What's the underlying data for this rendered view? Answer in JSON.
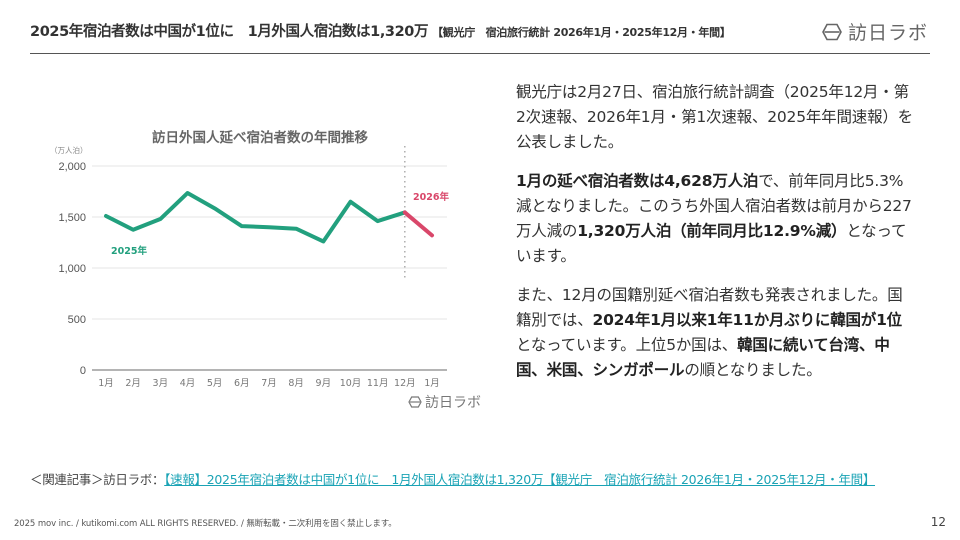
{
  "header": {
    "title": "2025年宿泊者数は中国が1位に　1月外国人宿泊数は1,320万",
    "subtitle": "【観光庁　宿泊旅行統計 2026年1月・2025年12月・年間】",
    "logo_text": "訪日ラボ",
    "logo_icon": "hexagon-logo-icon"
  },
  "article": {
    "paragraphs": [
      [
        {
          "text": "観光庁は2月27日、宿泊旅行統計調査（2025年12月・第2次速報、2026年1月・第1次速報、2025年年間速報）を公表しました。",
          "bold": false
        }
      ],
      [
        {
          "text": "1月の延べ宿泊者数は4,628万人泊",
          "bold": true
        },
        {
          "text": "で、前年同月比5.3%減となりました。このうち外国人宿泊者数は前月から227万人減の",
          "bold": false
        },
        {
          "text": "1,320万人泊（前年同月比12.9%減）",
          "bold": true
        },
        {
          "text": "となっています。",
          "bold": false
        }
      ],
      [
        {
          "text": "また、12月の国籍別延べ宿泊者数も発表されました。国籍別では、",
          "bold": false
        },
        {
          "text": "2024年1月以来1年11か月ぶりに韓国が1位",
          "bold": true
        },
        {
          "text": "となっています。上位5か国は、",
          "bold": false
        },
        {
          "text": "韓国に続いて台湾、中国、米国、シンガポール",
          "bold": true
        },
        {
          "text": "の順となりました。",
          "bold": false
        }
      ]
    ]
  },
  "related": {
    "label": "＜関連記事＞訪日ラボ：",
    "link_text": "【速報】2025年宿泊者数は中国が1位に　1月外国人宿泊数は1,320万【観光庁　宿泊旅行統計 2026年1月・2025年12月・年間】"
  },
  "footer": {
    "copyright": "2025 mov inc. / kutikomi.com ALL RIGHTS RESERVED. / 無断転載・二次利用を固く禁止します。",
    "page_number": "12"
  },
  "colors": {
    "series_2025": "#22a07e",
    "series_2026": "#d9476a",
    "link": "#1aa3b5",
    "grid": "#e6e6e6"
  },
  "chart_data": {
    "type": "line",
    "title": "訪日外国人延べ宿泊者数の年間推移",
    "ylabel": "（万人泊）",
    "xlabel": "",
    "ylim": [
      0,
      2000
    ],
    "yticks": [
      "0",
      "500",
      "1,000",
      "1,500",
      "2,000"
    ],
    "ytick_values": [
      0,
      500,
      1000,
      1500,
      2000
    ],
    "categories": [
      "1月",
      "2月",
      "3月",
      "4月",
      "5月",
      "6月",
      "7月",
      "8月",
      "9月",
      "10月",
      "11月",
      "12月",
      "1月"
    ],
    "series": [
      {
        "name": "2025年",
        "color": "#22a07e",
        "values": [
          1510,
          1375,
          1480,
          1735,
          1585,
          1410,
          1400,
          1385,
          1260,
          1650,
          1460,
          1545,
          null
        ]
      },
      {
        "name": "2026年",
        "color": "#d9476a",
        "values": [
          null,
          null,
          null,
          null,
          null,
          null,
          null,
          null,
          null,
          null,
          null,
          1545,
          1320
        ]
      }
    ],
    "annotations": [
      "2025年",
      "2026年"
    ],
    "divider_after_category_index": 11,
    "grid": true,
    "legend_position": "inline labels",
    "watermark": "訪日ラボ"
  }
}
